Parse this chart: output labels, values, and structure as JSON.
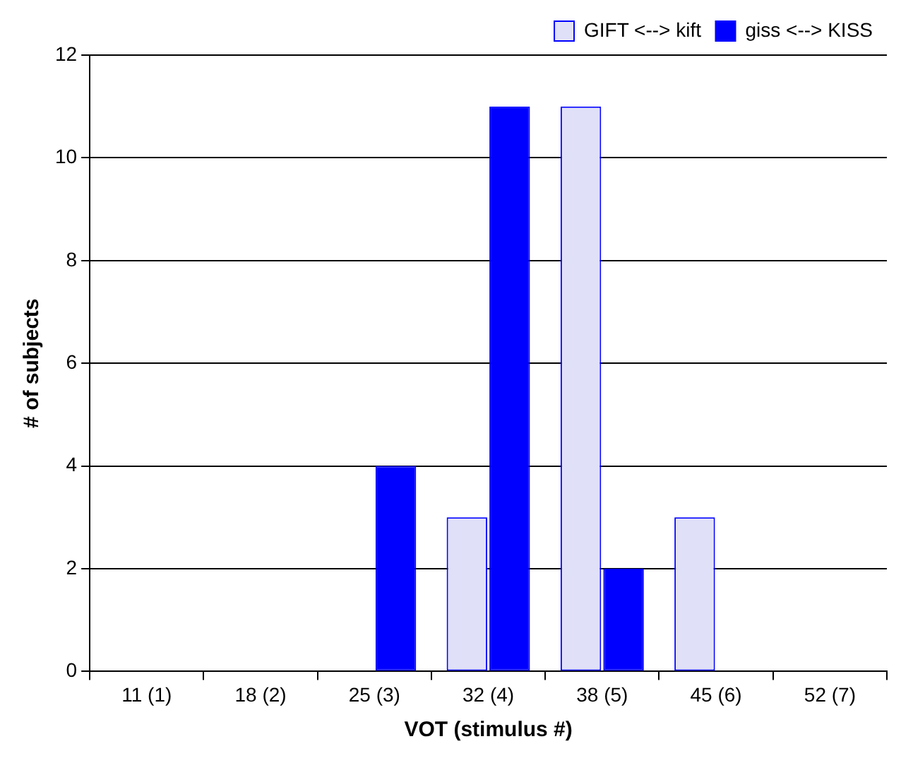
{
  "chart_data": {
    "type": "bar",
    "xlabel": "VOT (stimulus #)",
    "ylabel": "# of subjects",
    "categories": [
      "11 (1)",
      "18 (2)",
      "25 (3)",
      "32 (4)",
      "38 (5)",
      "45 (6)",
      "52 (7)"
    ],
    "series": [
      {
        "name": "GIFT <--> kift",
        "color": "#e0e0f8",
        "values": [
          0,
          0,
          0,
          3,
          11,
          3,
          0
        ]
      },
      {
        "name": "giss <--> KISS",
        "color": "#0000ff",
        "values": [
          0,
          0,
          4,
          11,
          2,
          0,
          0
        ]
      }
    ],
    "ylim": [
      0,
      12
    ],
    "yticks": [
      0,
      2,
      4,
      6,
      8,
      10,
      12
    ],
    "grid": "y",
    "legend": "top right"
  }
}
